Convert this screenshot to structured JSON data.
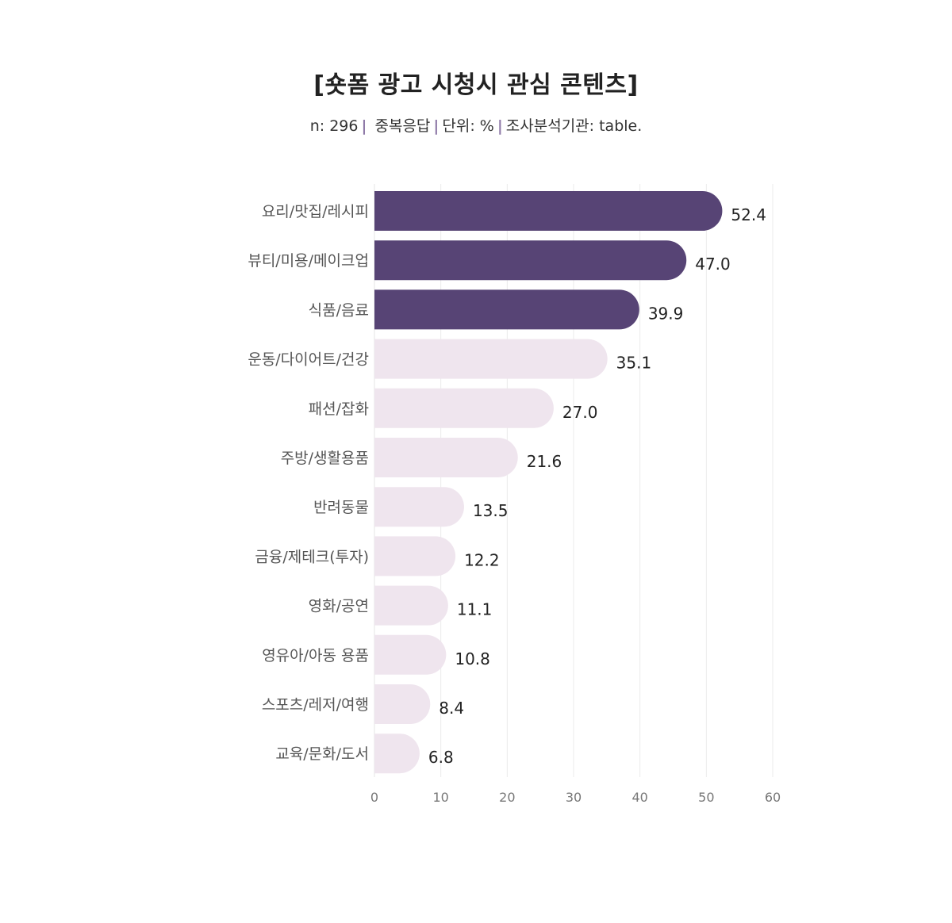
{
  "header": {
    "title": "[숏폼 광고 시청시 관심 콘텐츠]",
    "meta": {
      "n": "n: 296",
      "multi": "중복응답",
      "unit": "단위: %",
      "source": "조사분석기관: table."
    }
  },
  "colors": {
    "highlight": "#574475",
    "normal": "#efe5ee",
    "grid": "#ebebeb",
    "label": "#555555",
    "value": "#222222",
    "tick": "#777777"
  },
  "chart_data": {
    "type": "bar",
    "orientation": "horizontal",
    "categories": [
      "요리/맛집/레시피",
      "뷰티/미용/메이크업",
      "식품/음료",
      "운동/다이어트/건강",
      "패션/잡화",
      "주방/생활용품",
      "반려동물",
      "금융/제테크(투자)",
      "영화/공연",
      "영유아/아동 용품",
      "스포츠/레저/여행",
      "교육/문화/도서"
    ],
    "values": [
      52.4,
      47.0,
      39.9,
      35.1,
      27.0,
      21.6,
      13.5,
      12.2,
      11.1,
      10.8,
      8.4,
      6.8
    ],
    "value_labels": [
      "52.4",
      "47.0",
      "39.9",
      "35.1",
      "27.0",
      "21.6",
      "13.5",
      "12.2",
      "11.1",
      "10.8",
      "8.4",
      "6.8"
    ],
    "highlighted": [
      true,
      true,
      true,
      false,
      false,
      false,
      false,
      false,
      false,
      false,
      false,
      false
    ],
    "xlim": [
      0,
      60
    ],
    "xticks": [
      0,
      10,
      20,
      30,
      40,
      50,
      60
    ],
    "grid": true
  }
}
